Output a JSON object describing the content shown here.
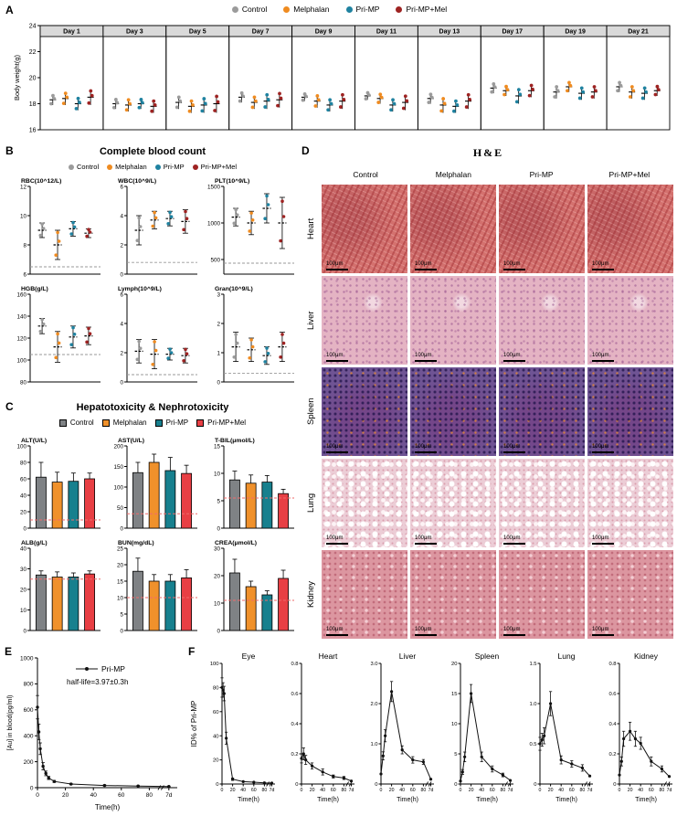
{
  "figure": {
    "groups": [
      "Control",
      "Melphalan",
      "Pri-MP",
      "Pri-MP+Mel"
    ],
    "group_colors": [
      "#9b9b9b",
      "#ef8b20",
      "#1f82a0",
      "#9e2322"
    ],
    "bar_colors": [
      "#7f8285",
      "#f0912b",
      "#17808e",
      "#e83f44"
    ]
  },
  "panelA": {
    "label": "A",
    "ylabel": "Body weight(g)",
    "ylim": [
      16,
      24
    ],
    "yticks": [
      16,
      18,
      20,
      22,
      24
    ],
    "days": [
      "Day 1",
      "Day 3",
      "Day 5",
      "Day 7",
      "Day 9",
      "Day 11",
      "Day 13",
      "Day 17",
      "Day 19",
      "Day 21"
    ],
    "means": [
      [
        18.3,
        18.4,
        18.0,
        18.5
      ],
      [
        18.0,
        17.9,
        18.0,
        17.8
      ],
      [
        18.1,
        17.8,
        17.9,
        18.0
      ],
      [
        18.5,
        18.1,
        18.2,
        18.3
      ],
      [
        18.5,
        18.2,
        17.9,
        18.2
      ],
      [
        18.6,
        18.4,
        17.9,
        18.1
      ],
      [
        18.4,
        17.9,
        17.8,
        18.2
      ],
      [
        19.2,
        19.0,
        18.6,
        19.0
      ],
      [
        18.9,
        19.3,
        18.8,
        18.9
      ],
      [
        19.3,
        18.9,
        18.8,
        19.0
      ]
    ],
    "spreads": [
      [
        0.4,
        0.5,
        0.5,
        0.6
      ],
      [
        0.4,
        0.5,
        0.4,
        0.5
      ],
      [
        0.5,
        0.5,
        0.6,
        0.7
      ],
      [
        0.4,
        0.5,
        0.6,
        0.6
      ],
      [
        0.3,
        0.5,
        0.5,
        0.6
      ],
      [
        0.3,
        0.4,
        0.5,
        0.6
      ],
      [
        0.4,
        0.6,
        0.5,
        0.6
      ],
      [
        0.4,
        0.4,
        0.6,
        0.5
      ],
      [
        0.5,
        0.4,
        0.5,
        0.5
      ],
      [
        0.4,
        0.5,
        0.5,
        0.4
      ]
    ]
  },
  "panelB": {
    "label": "B",
    "title": "Complete blood count",
    "plots": [
      {
        "name": "RBC(10^12/L)",
        "ylim": [
          6,
          12
        ],
        "yticks": [
          6,
          8,
          10,
          12
        ],
        "ydec": 0,
        "ref": 6.5,
        "means": [
          9.0,
          8.0,
          9.1,
          8.8
        ],
        "spreads": [
          0.5,
          1.0,
          0.5,
          0.3
        ]
      },
      {
        "name": "WBC(10^9/L)",
        "ylim": [
          0,
          6
        ],
        "yticks": [
          0,
          2,
          4,
          6
        ],
        "ydec": 0,
        "ref": 0.8,
        "means": [
          3.0,
          3.7,
          3.8,
          3.6
        ],
        "spreads": [
          1.0,
          0.6,
          0.5,
          0.8
        ]
      },
      {
        "name": "PLT(10^9/L)",
        "ylim": [
          300,
          1500
        ],
        "yticks": [
          500,
          1000,
          1500
        ],
        "ydec": 0,
        "ref": 450,
        "means": [
          1080,
          1000,
          1200,
          1000
        ],
        "spreads": [
          120,
          160,
          200,
          350
        ]
      },
      {
        "name": "HGB(g/L)",
        "ylim": [
          80,
          160
        ],
        "yticks": [
          80,
          100,
          120,
          140,
          160
        ],
        "ydec": 0,
        "ref": 105,
        "means": [
          131,
          112,
          121,
          122
        ],
        "spreads": [
          7,
          14,
          10,
          8
        ]
      },
      {
        "name": "Lymph(10^9/L)",
        "ylim": [
          0,
          6
        ],
        "yticks": [
          0,
          2,
          4,
          6
        ],
        "ydec": 0,
        "ref": 0.5,
        "means": [
          2.1,
          1.9,
          1.9,
          1.8
        ],
        "spreads": [
          0.8,
          1.0,
          0.4,
          0.5
        ]
      },
      {
        "name": "Gran(10^9/L)",
        "ylim": [
          0,
          3
        ],
        "yticks": [
          0,
          1,
          2,
          3
        ],
        "ydec": 0,
        "ref": 0.3,
        "means": [
          1.2,
          1.1,
          0.9,
          1.2
        ],
        "spreads": [
          0.5,
          0.4,
          0.3,
          0.5
        ]
      }
    ]
  },
  "panelC": {
    "label": "C",
    "title": "Hepatotoxicity & Nephrotoxicity",
    "plots": [
      {
        "name": "ALT(U/L)",
        "ylim": [
          0,
          100
        ],
        "yticks": [
          0,
          20,
          40,
          60,
          80,
          100
        ],
        "ydec": 0,
        "ref": 10,
        "means": [
          62,
          56,
          57,
          60
        ],
        "errs": [
          18,
          12,
          10,
          7
        ]
      },
      {
        "name": "AST(U/L)",
        "ylim": [
          0,
          200
        ],
        "yticks": [
          0,
          50,
          100,
          150,
          200
        ],
        "ydec": 0,
        "ref": 35,
        "means": [
          135,
          160,
          140,
          133
        ],
        "errs": [
          25,
          20,
          32,
          20
        ]
      },
      {
        "name": "T-BIL(μmol/L)",
        "ylim": [
          0,
          15
        ],
        "yticks": [
          0,
          5,
          10,
          15
        ],
        "ydec": 0,
        "ref": 5.5,
        "means": [
          8.8,
          8.2,
          8.4,
          6.3
        ],
        "errs": [
          1.6,
          1.5,
          1.2,
          0.8
        ]
      },
      {
        "name": "ALB(g/L)",
        "ylim": [
          0,
          40
        ],
        "yticks": [
          0,
          10,
          20,
          30,
          40
        ],
        "ydec": 0,
        "ref": 25,
        "means": [
          27,
          26,
          26,
          27.5
        ],
        "errs": [
          2,
          2.5,
          2,
          1.5
        ]
      },
      {
        "name": "BUN(mg/dL)",
        "ylim": [
          0,
          25
        ],
        "yticks": [
          0,
          5,
          10,
          15,
          20,
          25
        ],
        "ydec": 0,
        "ref": 10,
        "means": [
          18,
          15,
          15,
          16
        ],
        "errs": [
          4,
          2,
          2,
          2.5
        ]
      },
      {
        "name": "CREA(μmol/L)",
        "ylim": [
          0,
          30
        ],
        "yticks": [
          0,
          10,
          20,
          30
        ],
        "ydec": 0,
        "ref": 11,
        "means": [
          21,
          16,
          13,
          19
        ],
        "errs": [
          5,
          2,
          1.5,
          3
        ]
      }
    ]
  },
  "panelD": {
    "label": "D",
    "title": "H&E",
    "columns": [
      "Control",
      "Melphalan",
      "Pri-MP",
      "Pri-MP+Mel"
    ],
    "rows": [
      "Heart",
      "Liver",
      "Spleen",
      "Lung",
      "Kidney"
    ],
    "scale_bar": "100μm"
  },
  "panelE": {
    "label": "E",
    "legend": "Pri-MP",
    "annotation": "half-life=3.97±0.3h",
    "ylabel": "[Au] in blood(pg/ml)",
    "xlabel": "Time(h)",
    "ylim": [
      0,
      1000
    ],
    "yticks": [
      0,
      200,
      400,
      600,
      800,
      1000
    ],
    "xticks": [
      0,
      20,
      40,
      60,
      80
    ],
    "xbreak_label": "7d",
    "points": [
      [
        0,
        620,
        90
      ],
      [
        1,
        430,
        60
      ],
      [
        2,
        300,
        45
      ],
      [
        4,
        165,
        28
      ],
      [
        6,
        110,
        18
      ],
      [
        8,
        75,
        12
      ],
      [
        12,
        48,
        8
      ],
      [
        24,
        28,
        5
      ],
      [
        48,
        17,
        4
      ],
      [
        72,
        13,
        3
      ],
      [
        96,
        9,
        2
      ]
    ]
  },
  "panelF": {
    "label": "F",
    "ylabel": "ID% of Pri-MP",
    "xlabel": "Time(h)",
    "xticks": [
      0,
      20,
      40,
      60,
      80
    ],
    "xbreak_label": "7d",
    "plots": [
      {
        "name": "Eye",
        "ylim": [
          0,
          100
        ],
        "yticks": [
          0,
          20,
          40,
          60,
          80,
          100
        ],
        "ydec": 0,
        "points": [
          [
            0,
            80,
            8
          ],
          [
            2,
            78,
            6
          ],
          [
            4,
            75,
            6
          ],
          [
            8,
            38,
            5
          ],
          [
            20,
            4,
            1
          ],
          [
            40,
            2,
            0
          ],
          [
            60,
            1.5,
            0
          ],
          [
            80,
            1,
            0
          ],
          [
            96,
            0.8,
            0
          ]
        ]
      },
      {
        "name": "Heart",
        "ylim": [
          0,
          0.8
        ],
        "yticks": [
          0,
          0.2,
          0.4,
          0.6,
          0.8
        ],
        "ydec": 1,
        "points": [
          [
            0,
            0.17,
            0.03
          ],
          [
            4,
            0.2,
            0.04
          ],
          [
            8,
            0.16,
            0.03
          ],
          [
            20,
            0.12,
            0.02
          ],
          [
            40,
            0.08,
            0.02
          ],
          [
            60,
            0.05,
            0.01
          ],
          [
            80,
            0.04,
            0.01
          ],
          [
            96,
            0.02,
            0
          ]
        ]
      },
      {
        "name": "Liver",
        "ylim": [
          0,
          3
        ],
        "yticks": [
          0,
          1,
          2,
          3
        ],
        "ydec": 1,
        "points": [
          [
            0,
            0.25,
            0
          ],
          [
            4,
            0.7,
            0.1
          ],
          [
            8,
            1.2,
            0.15
          ],
          [
            20,
            2.3,
            0.25
          ],
          [
            40,
            0.85,
            0.1
          ],
          [
            60,
            0.6,
            0.08
          ],
          [
            80,
            0.55,
            0.06
          ],
          [
            96,
            0.12,
            0
          ]
        ]
      },
      {
        "name": "Spleen",
        "ylim": [
          0,
          20
        ],
        "yticks": [
          0,
          5,
          10,
          15,
          20
        ],
        "ydec": 0,
        "points": [
          [
            0,
            0.5,
            0
          ],
          [
            4,
            2,
            0.4
          ],
          [
            8,
            4.5,
            0.8
          ],
          [
            20,
            15,
            1.5
          ],
          [
            40,
            4.5,
            0.8
          ],
          [
            60,
            2.5,
            0.5
          ],
          [
            80,
            1.5,
            0.3
          ],
          [
            96,
            0.6,
            0
          ]
        ]
      },
      {
        "name": "Lung",
        "ylim": [
          0,
          1.5
        ],
        "yticks": [
          0,
          0.5,
          1,
          1.5
        ],
        "ydec": 1,
        "points": [
          [
            0,
            0.5,
            0.08
          ],
          [
            4,
            0.55,
            0.08
          ],
          [
            8,
            0.6,
            0.1
          ],
          [
            20,
            1.0,
            0.15
          ],
          [
            40,
            0.3,
            0.05
          ],
          [
            60,
            0.25,
            0.04
          ],
          [
            80,
            0.2,
            0.04
          ],
          [
            96,
            0.1,
            0
          ]
        ]
      },
      {
        "name": "Kidney",
        "ylim": [
          0,
          0.8
        ],
        "yticks": [
          0,
          0.2,
          0.4,
          0.6,
          0.8
        ],
        "ydec": 1,
        "points": [
          [
            0,
            0.06,
            0
          ],
          [
            4,
            0.15,
            0.03
          ],
          [
            8,
            0.3,
            0.05
          ],
          [
            20,
            0.35,
            0.06
          ],
          [
            30,
            0.3,
            0.05
          ],
          [
            40,
            0.27,
            0.04
          ],
          [
            60,
            0.15,
            0.03
          ],
          [
            80,
            0.1,
            0.02
          ],
          [
            96,
            0.05,
            0
          ]
        ]
      }
    ]
  }
}
